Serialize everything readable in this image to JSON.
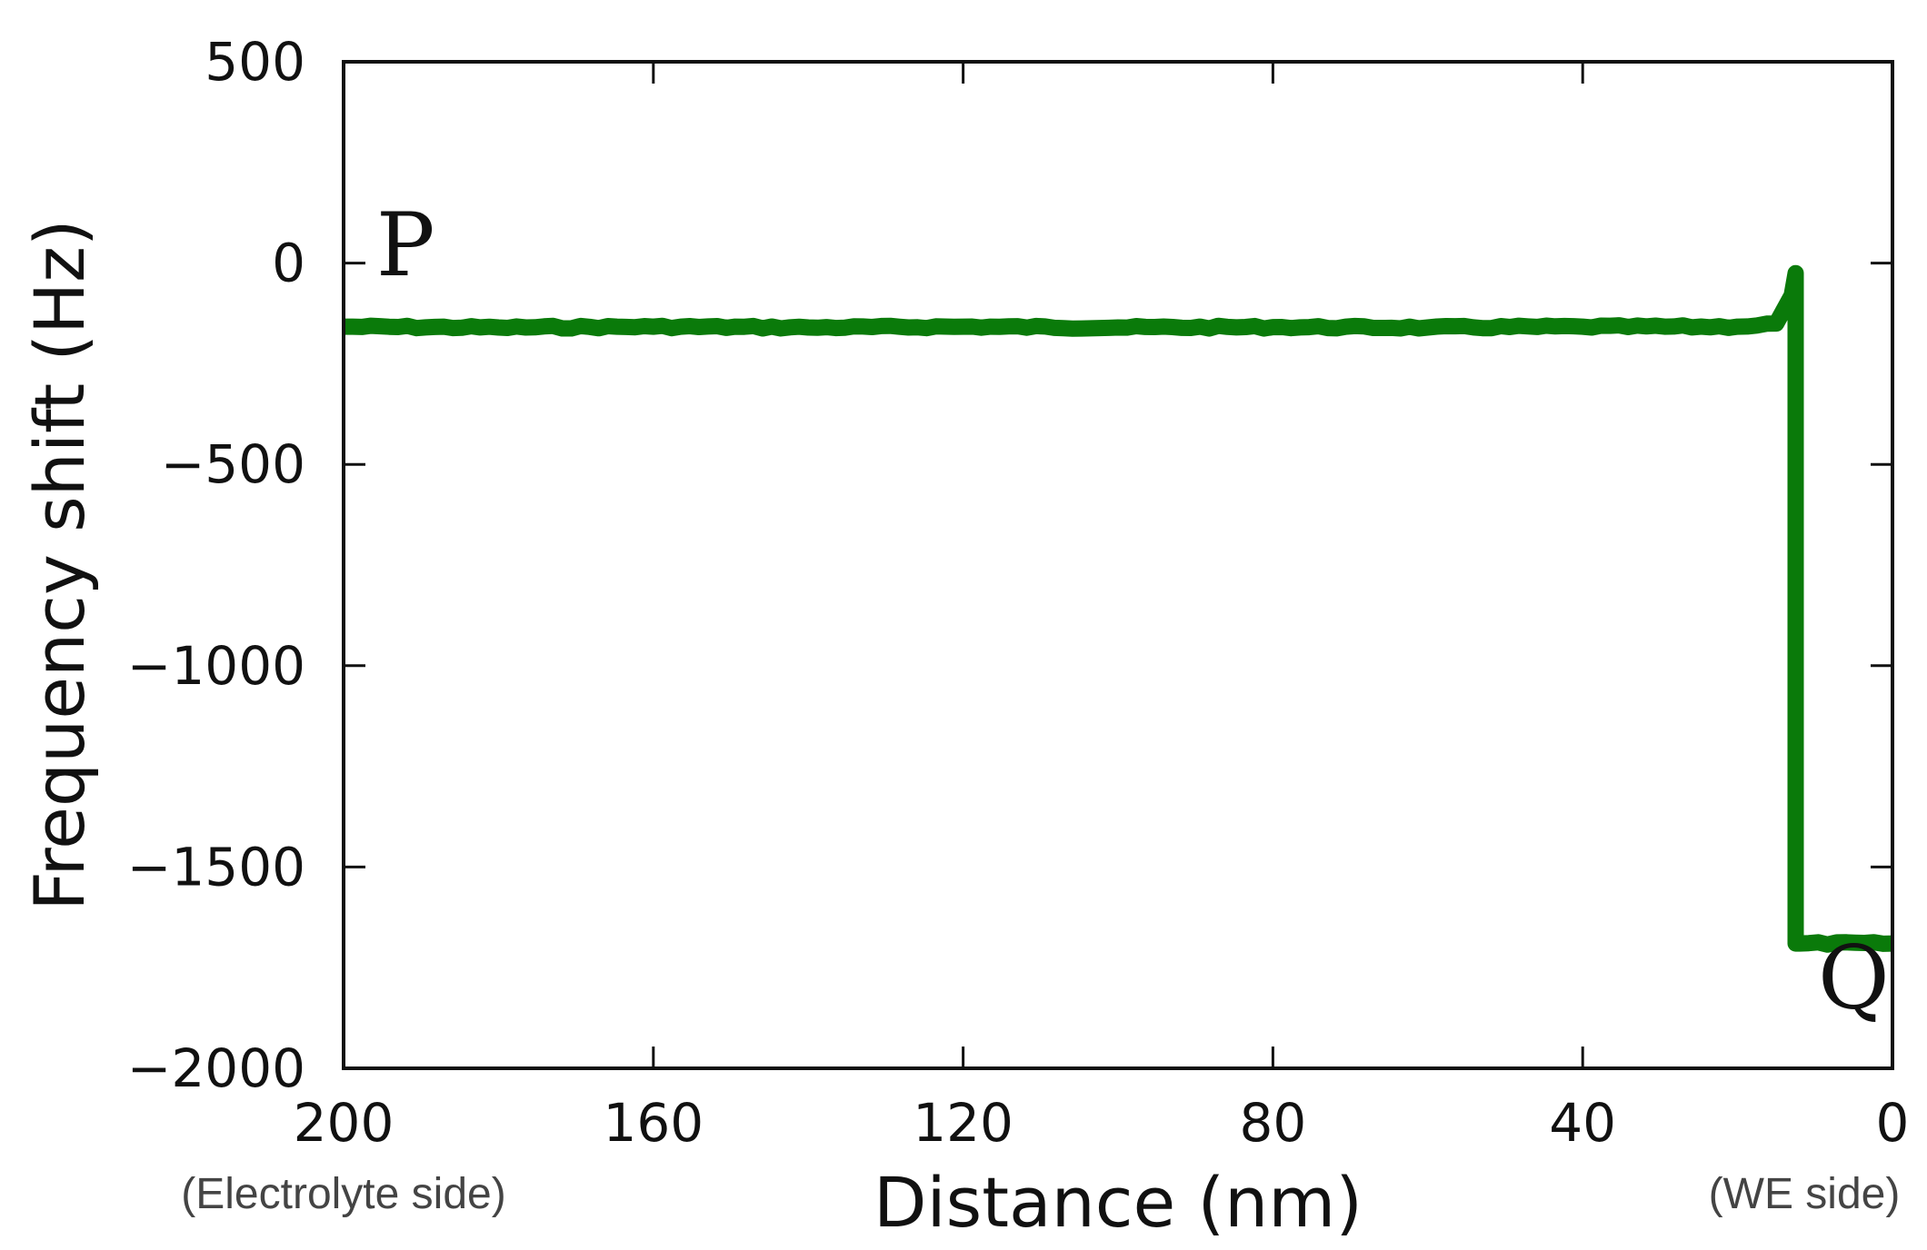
{
  "chart_data": {
    "type": "line",
    "xlabel": "Distance (nm)",
    "ylabel": "Frequency shift (Hz)",
    "xlim": [
      200,
      0
    ],
    "ylim": [
      -2000,
      500
    ],
    "x_reversed": true,
    "xticks": [
      200,
      160,
      120,
      80,
      40,
      0
    ],
    "xtick_labels": [
      "200",
      "160",
      "120",
      "80",
      "40",
      "0"
    ],
    "yticks": [
      500,
      0,
      -500,
      -1000,
      -1500,
      -2000
    ],
    "ytick_labels": [
      "500",
      "0",
      "−500",
      "−1000",
      "−1500",
      "−2000"
    ],
    "grid": false,
    "series_color": "#0a7a0a",
    "series": [
      {
        "x": [
          200,
          180,
          160,
          140,
          120,
          100,
          80,
          60,
          40,
          20,
          15,
          13,
          12.5,
          12.5,
          12,
          0
        ],
        "y": [
          -158,
          -160,
          -158,
          -160,
          -158,
          -160,
          -159,
          -160,
          -158,
          -158,
          -150,
          -80,
          -25,
          -1690,
          -1690,
          -1690
        ]
      }
    ],
    "annotations": [
      {
        "text": "P",
        "x": 192,
        "y": -30
      },
      {
        "text": "Q",
        "x": 5,
        "y": -1850
      }
    ],
    "x_end_labels": {
      "left": "(Electrolyte side)",
      "right": "(WE side)"
    }
  }
}
